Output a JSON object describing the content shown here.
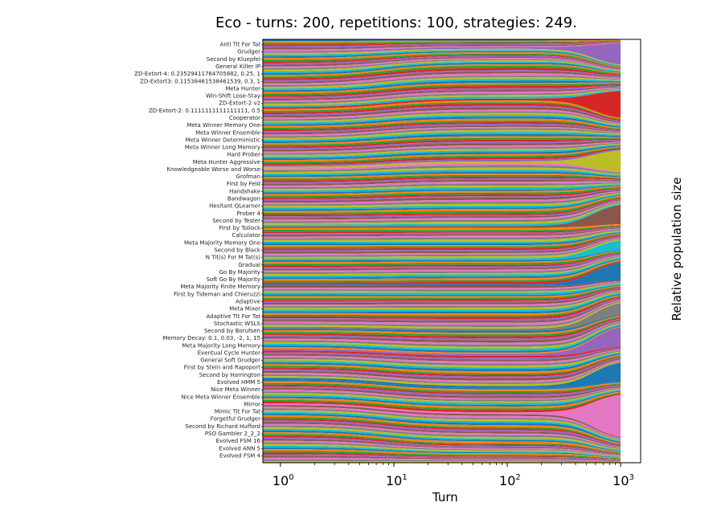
{
  "chart_data": {
    "type": "area",
    "stacked": true,
    "normalized": true,
    "title": "Eco - turns: 200, repetitions: 100, strategies: 249.",
    "xlabel": "Turn",
    "ylabel": "Relative population size",
    "x_scale": "log",
    "x_ticks": [
      {
        "base": "10",
        "exp": "0",
        "value": 1
      },
      {
        "base": "10",
        "exp": "1",
        "value": 10
      },
      {
        "base": "10",
        "exp": "2",
        "value": 100
      },
      {
        "base": "10",
        "exp": "3",
        "value": 1000
      }
    ],
    "xlim": [
      0.7,
      1500
    ],
    "n_strategies": 249,
    "palette": [
      "#1f77b4",
      "#ff7f0e",
      "#2ca02c",
      "#d62728",
      "#9467bd",
      "#8c564b",
      "#e377c2",
      "#7f7f7f",
      "#bcbd22",
      "#17becf"
    ],
    "highlight_series": [
      {
        "name": "",
        "band_top": 0.03,
        "band_height": 0.02,
        "final_share": 0.055,
        "color": "#9467bd"
      },
      {
        "name": "",
        "band_top": 0.16,
        "band_height": 0.013,
        "final_share": 0.07,
        "color": "#d62728"
      },
      {
        "name": "",
        "band_top": 0.3,
        "band_height": 0.012,
        "final_share": 0.055,
        "color": "#bcbd22"
      },
      {
        "name": "",
        "band_top": 0.44,
        "band_height": 0.02,
        "final_share": 0.05,
        "color": "#8c564b"
      },
      {
        "name": "",
        "band_top": 0.52,
        "band_height": 0.01,
        "final_share": 0.025,
        "color": "#17becf"
      },
      {
        "name": "",
        "band_top": 0.58,
        "band_height": 0.015,
        "final_share": 0.045,
        "color": "#1f77b4"
      },
      {
        "name": "",
        "band_top": 0.68,
        "band_height": 0.01,
        "final_share": 0.03,
        "color": "#7f7f7f"
      },
      {
        "name": "",
        "band_top": 0.73,
        "band_height": 0.02,
        "final_share": 0.05,
        "color": "#9467bd"
      },
      {
        "name": "",
        "band_top": 0.8,
        "band_height": 0.01,
        "final_share": 0.05,
        "color": "#1f77b4"
      },
      {
        "name": "",
        "band_top": 0.86,
        "band_height": 0.01,
        "final_share": 0.11,
        "color": "#e377c2"
      }
    ],
    "strategy_labels": [
      "Anti Tit For Tat",
      "Grudger",
      "Second by Kluepfel",
      "General Killer IP",
      "ZD-Extort-4: 0.23529411764705882, 0.25, 1",
      "ZD-Extort3: 0.11538461538461539, 0.3, 1",
      "Meta Hunter",
      "Win-Shift Lose-Stay",
      "ZD-Extort-2 v2",
      "ZD-Extort-2: 0.1111111111111111, 0.5",
      "Cooperator",
      "Meta Winner Memory One",
      "Meta Winner Ensemble",
      "Meta Winner Deterministic",
      "Meta Winner Long Memory",
      "Hard Prober",
      "Meta Hunter Aggressive",
      "Knowledgeable Worse and Worse",
      "Grofman",
      "First by Feld",
      "Handshake",
      "Bandwagon",
      "Hesitant QLearner",
      "Prober 4",
      "Second by Tester",
      "First by Tullock",
      "Calculator",
      "Meta Majority Memory One",
      "Second by Black",
      "N Tit(s) For M Tat(s)",
      "Gradual",
      "Go By Majority",
      "Soft Go By Majority",
      "Meta Majority Finite Memory",
      "First by Tideman and Chieruzzi",
      "Adaptive",
      "Meta Mixer",
      "Adaptive Tit For Tat",
      "Stochastic WSLS",
      "Second by Borufsen",
      "Memory Decay: 0.1, 0.03, -2, 1, 15",
      "Meta Majority Long Memory",
      "Eventual Cycle Hunter",
      "General Soft Grudger",
      "First by Stein and Rapoport",
      "Second by Harrington",
      "Evolved HMM 5",
      "Nice Meta Winner",
      "Nice Meta Winner Ensemble",
      "Mirror",
      "Mimic Tit For Tat",
      "Forgetful Grudger",
      "Second by Richard Hufford",
      "PSO Gambler 2_2_2",
      "Evolved FSM 16",
      "Evolved ANN 5",
      "Evolved FSM 4"
    ]
  }
}
